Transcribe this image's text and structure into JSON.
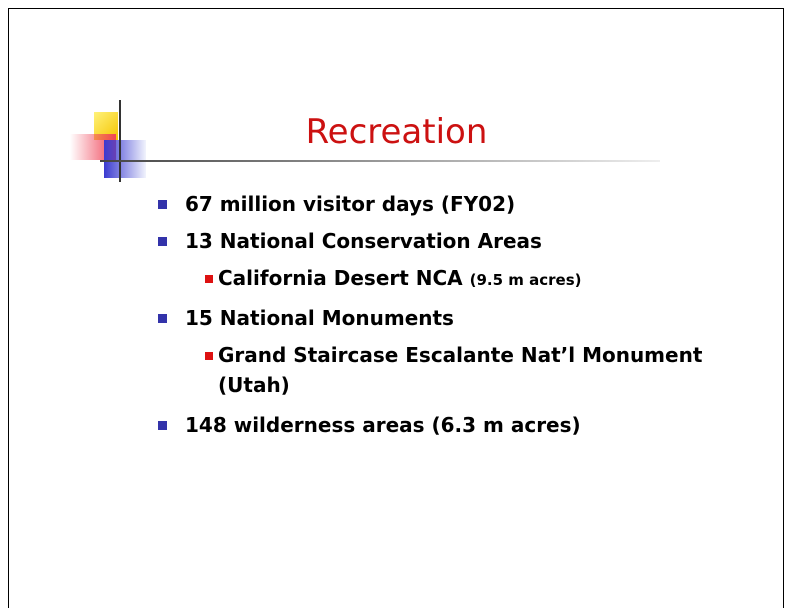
{
  "title": "Recreation",
  "bullets": [
    {
      "text": "67 million visitor days (FY02)"
    },
    {
      "text": "13 National Conservation Areas",
      "sub": [
        {
          "text": "California Desert NCA",
          "note": "(9.5 m acres)"
        }
      ]
    },
    {
      "text": "15 National Monuments",
      "sub": [
        {
          "text": "Grand Staircase Escalante Nat’l Monument (Utah)"
        }
      ]
    },
    {
      "text": "148 wilderness areas (6.3 m acres)"
    }
  ]
}
